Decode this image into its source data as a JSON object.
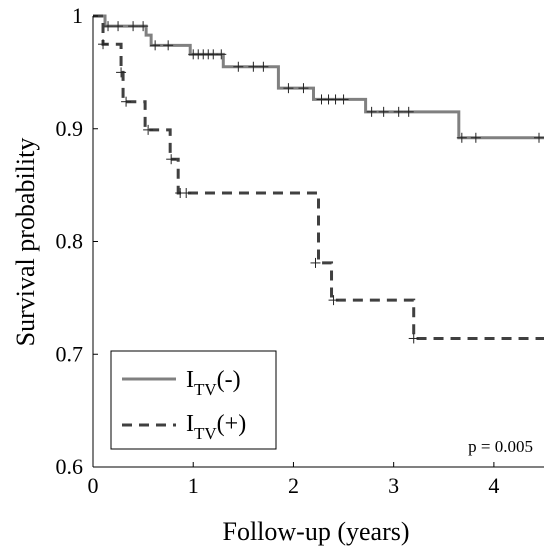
{
  "chart_data": {
    "type": "line",
    "subtype": "kaplan-meier",
    "xlabel": "Follow-up (years)",
    "ylabel": "Survival probability",
    "xlim": [
      0,
      4.5
    ],
    "ylim": [
      0.6,
      1.0
    ],
    "x_ticks": [
      0,
      1,
      2,
      3,
      4
    ],
    "y_ticks": [
      0.6,
      0.7,
      0.8,
      0.9,
      1.0
    ],
    "y_tick_labels": [
      "0.6",
      "0.7",
      "0.8",
      "0.9",
      "1"
    ],
    "grid": false,
    "legend_position": "bottom-left",
    "annotation": "p = 0.005",
    "series": [
      {
        "legend_main": "I",
        "legend_sub": "TV",
        "legend_suffix": "(-)",
        "style": "solid",
        "color": "#808080",
        "steps": [
          [
            0,
            1.0
          ],
          [
            0.12,
            0.991
          ],
          [
            0.53,
            0.983
          ],
          [
            0.58,
            0.974
          ],
          [
            0.97,
            0.966
          ],
          [
            1.3,
            0.955
          ],
          [
            1.85,
            0.936
          ],
          [
            2.2,
            0.926
          ],
          [
            2.72,
            0.915
          ],
          [
            3.65,
            0.892
          ],
          [
            4.5,
            0.892
          ]
        ],
        "censored": [
          [
            0.15,
            0.991
          ],
          [
            0.25,
            0.991
          ],
          [
            0.4,
            0.991
          ],
          [
            0.5,
            0.991
          ],
          [
            0.62,
            0.974
          ],
          [
            0.75,
            0.974
          ],
          [
            1.0,
            0.966
          ],
          [
            1.05,
            0.966
          ],
          [
            1.1,
            0.966
          ],
          [
            1.15,
            0.966
          ],
          [
            1.2,
            0.966
          ],
          [
            1.28,
            0.966
          ],
          [
            1.45,
            0.955
          ],
          [
            1.6,
            0.955
          ],
          [
            1.7,
            0.955
          ],
          [
            1.95,
            0.936
          ],
          [
            2.1,
            0.936
          ],
          [
            2.28,
            0.926
          ],
          [
            2.35,
            0.926
          ],
          [
            2.42,
            0.926
          ],
          [
            2.5,
            0.926
          ],
          [
            2.78,
            0.915
          ],
          [
            2.9,
            0.915
          ],
          [
            3.05,
            0.915
          ],
          [
            3.15,
            0.915
          ],
          [
            3.68,
            0.892
          ],
          [
            3.82,
            0.892
          ],
          [
            4.45,
            0.892
          ]
        ]
      },
      {
        "legend_main": "I",
        "legend_sub": "TV",
        "legend_suffix": "(+)",
        "style": "dashed",
        "color": "#404040",
        "steps": [
          [
            0,
            1.0
          ],
          [
            0.1,
            0.975
          ],
          [
            0.28,
            0.95
          ],
          [
            0.3,
            0.924
          ],
          [
            0.52,
            0.899
          ],
          [
            0.77,
            0.873
          ],
          [
            0.85,
            0.843
          ],
          [
            2.25,
            0.781
          ],
          [
            2.38,
            0.748
          ],
          [
            3.2,
            0.714
          ],
          [
            4.5,
            0.714
          ]
        ],
        "censored": [
          [
            0.1,
            0.975
          ],
          [
            0.28,
            0.95
          ],
          [
            0.33,
            0.924
          ],
          [
            0.55,
            0.899
          ],
          [
            0.78,
            0.873
          ],
          [
            0.87,
            0.843
          ],
          [
            0.93,
            0.843
          ],
          [
            2.22,
            0.781
          ],
          [
            2.4,
            0.748
          ],
          [
            3.2,
            0.714
          ]
        ]
      }
    ]
  }
}
